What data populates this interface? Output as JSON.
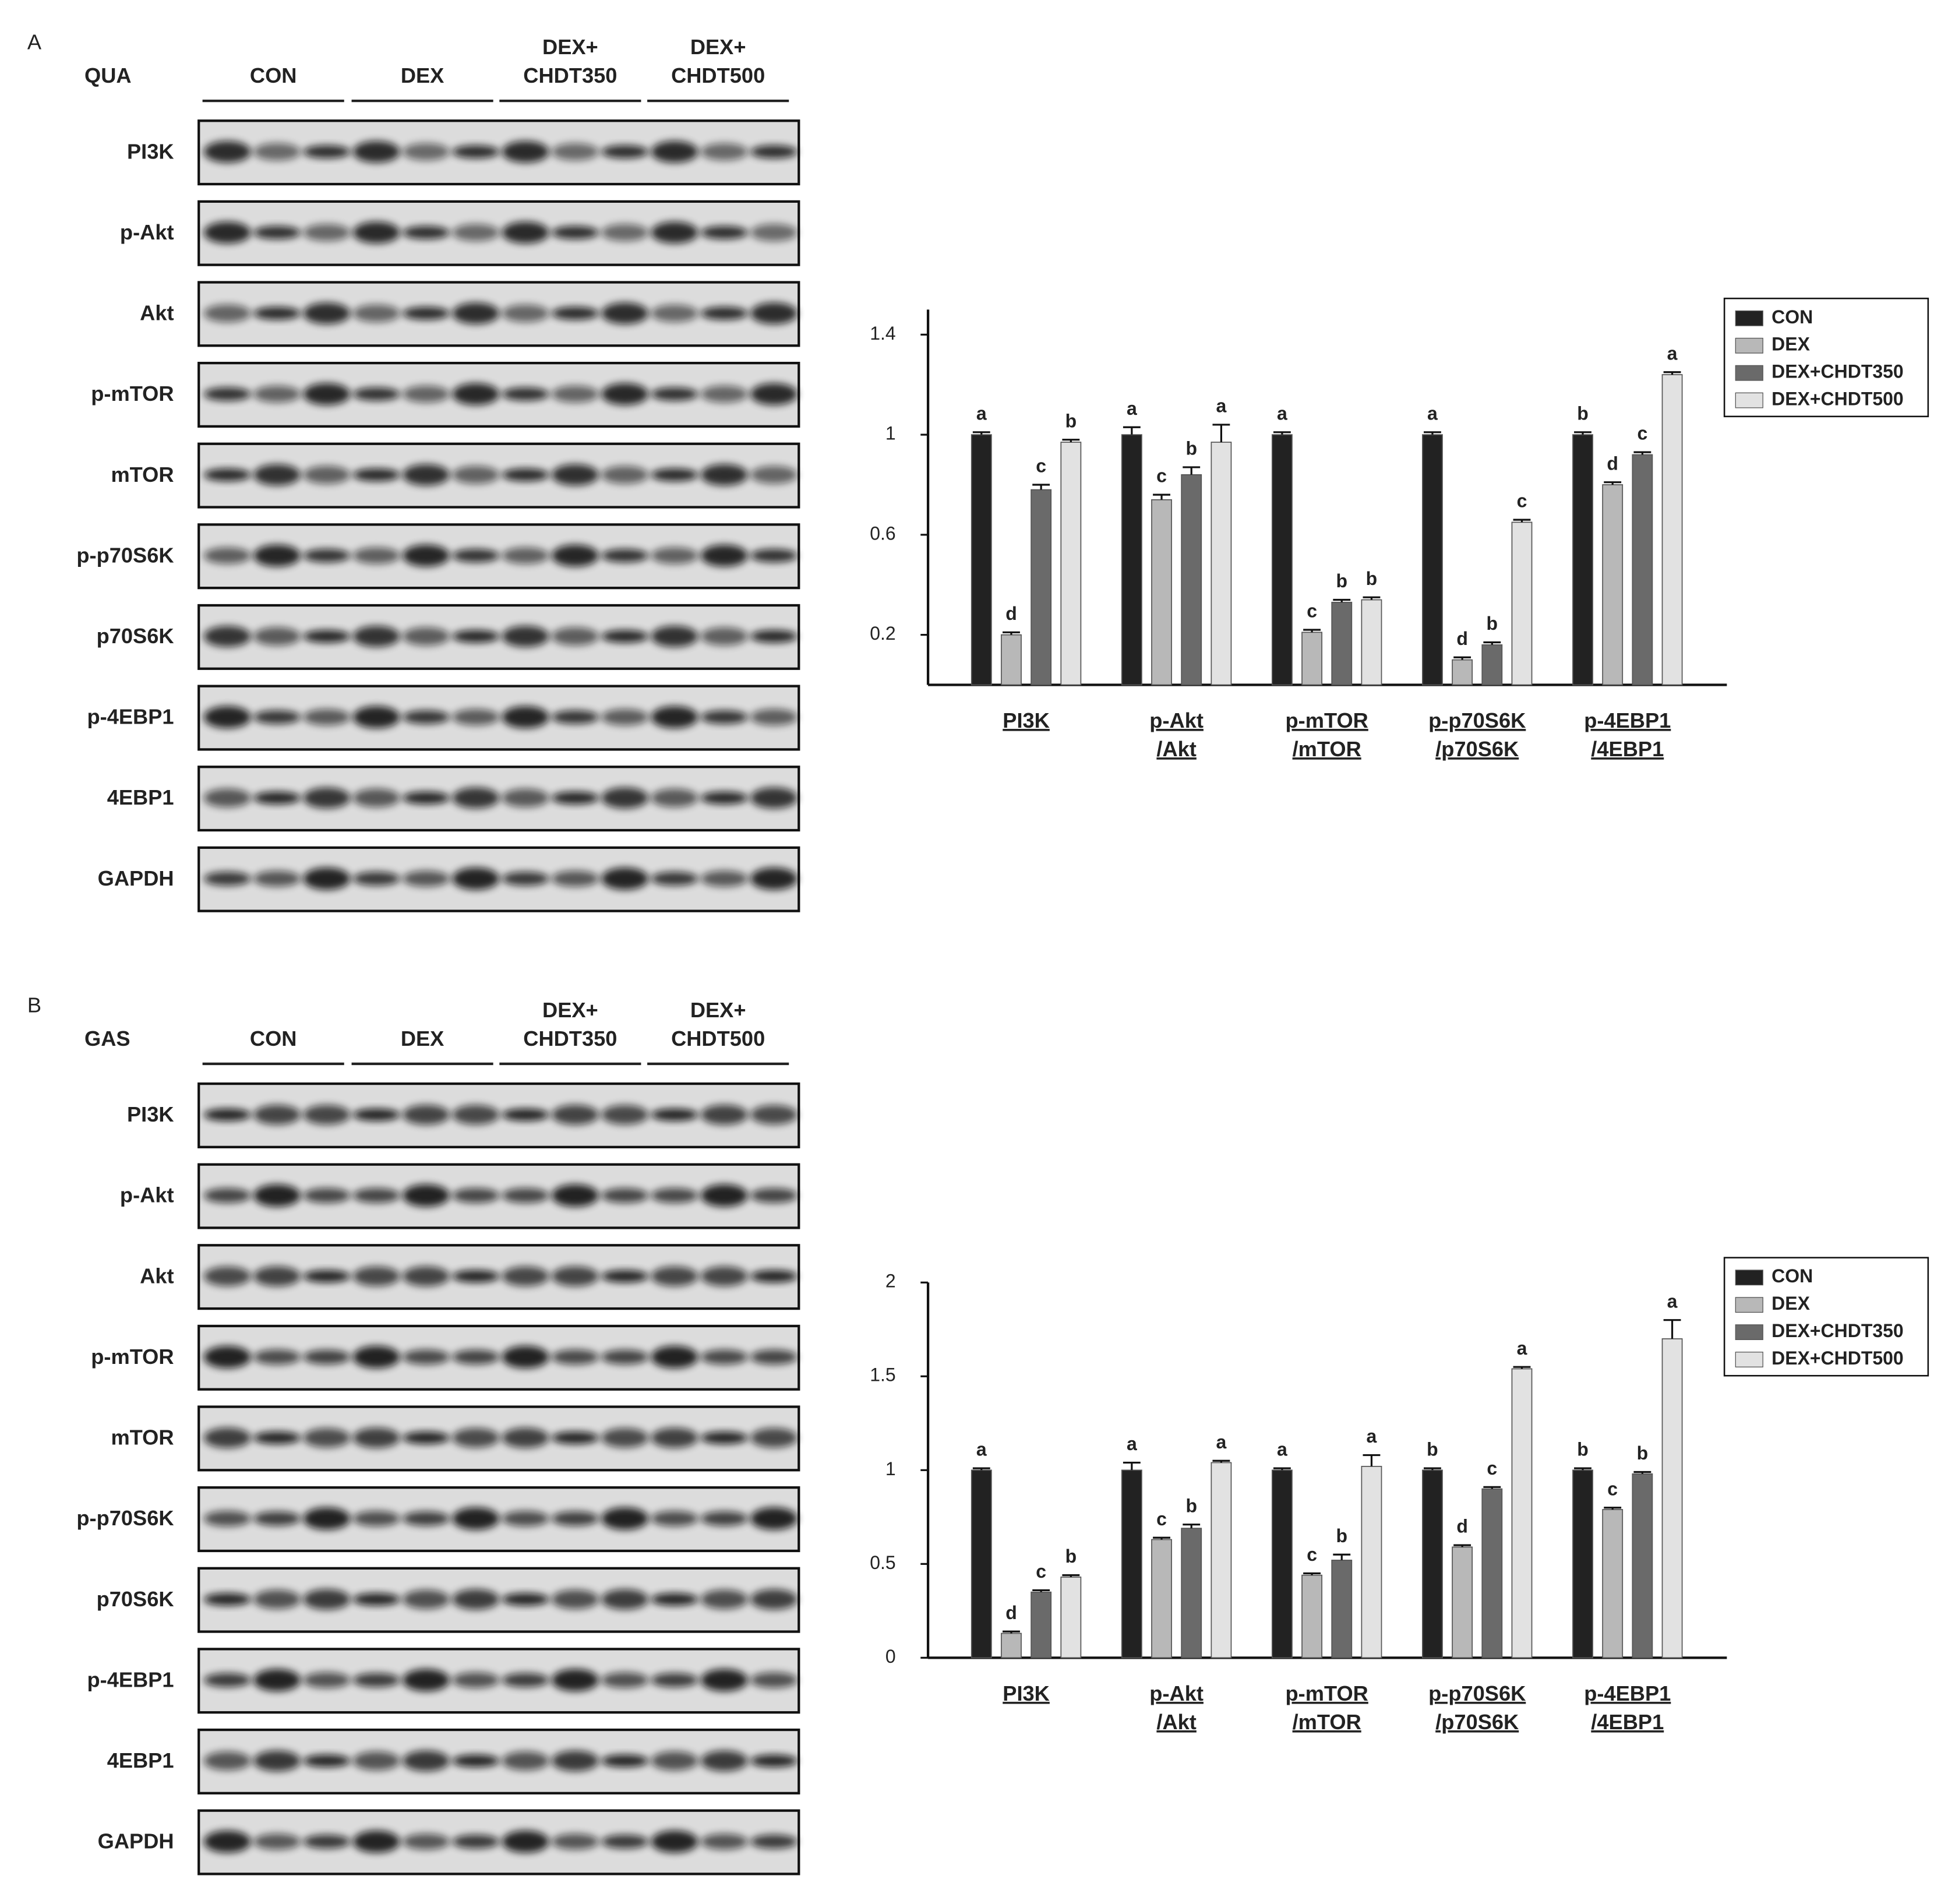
{
  "panels": [
    {
      "label": "A",
      "tissue": "QUA",
      "groups": [
        [
          "CON"
        ],
        [
          "DEX"
        ],
        [
          "DEX+",
          "CHDT350"
        ],
        [
          "DEX+",
          "CHDT500"
        ]
      ],
      "proteins": [
        "PI3K",
        "p-Akt",
        "Akt",
        "p-mTOR",
        "mTOR",
        "p-p70S6K",
        "p70S6K",
        "p-4EBP1",
        "4EBP1",
        "GAPDH"
      ]
    },
    {
      "label": "B",
      "tissue": "GAS",
      "groups": [
        [
          "CON"
        ],
        [
          "DEX"
        ],
        [
          "DEX+",
          "CHDT350"
        ],
        [
          "DEX+",
          "CHDT500"
        ]
      ],
      "proteins": [
        "PI3K",
        "p-Akt",
        "Akt",
        "p-mTOR",
        "mTOR",
        "p-p70S6K",
        "p70S6K",
        "p-4EBP1",
        "4EBP1",
        "GAPDH"
      ]
    }
  ],
  "chart_data": [
    {
      "type": "bar",
      "categories": [
        [
          "PI3K"
        ],
        [
          "p-Akt",
          "/Akt"
        ],
        [
          "p-mTOR",
          "/mTOR"
        ],
        [
          "p-p70S6K",
          "/p70S6K"
        ],
        [
          "p-4EBP1",
          "/4EBP1"
        ]
      ],
      "series": [
        {
          "name": "CON",
          "color": "#222222",
          "values": [
            1.0,
            1.0,
            1.0,
            1.0,
            1.0
          ],
          "errors": [
            0.01,
            0.03,
            0.01,
            0.01,
            0.01
          ],
          "letters": [
            "a",
            "a",
            "a",
            "a",
            "b"
          ]
        },
        {
          "name": "DEX",
          "color": "#b8b8b8",
          "values": [
            0.2,
            0.74,
            0.21,
            0.1,
            0.8
          ],
          "errors": [
            0.01,
            0.02,
            0.01,
            0.01,
            0.01
          ],
          "letters": [
            "d",
            "c",
            "c",
            "d",
            "d"
          ]
        },
        {
          "name": "DEX+CHDT350",
          "color": "#6a6a6a",
          "values": [
            0.78,
            0.84,
            0.33,
            0.16,
            0.92
          ],
          "errors": [
            0.02,
            0.03,
            0.01,
            0.01,
            0.01
          ],
          "letters": [
            "c",
            "b",
            "b",
            "b",
            "c"
          ]
        },
        {
          "name": "DEX+CHDT500",
          "color": "#e2e2e2",
          "values": [
            0.97,
            0.97,
            0.34,
            0.65,
            1.24
          ],
          "errors": [
            0.01,
            0.07,
            0.01,
            0.01,
            0.01
          ],
          "letters": [
            "b",
            "a",
            "b",
            "c",
            "a"
          ]
        }
      ],
      "ylim": [
        0,
        1.5
      ],
      "yticks": [
        0.2,
        0.6,
        1,
        1.4
      ],
      "legend": "upper right"
    },
    {
      "type": "bar",
      "categories": [
        [
          "PI3K"
        ],
        [
          "p-Akt",
          "/Akt"
        ],
        [
          "p-mTOR",
          "/mTOR"
        ],
        [
          "p-p70S6K",
          "/p70S6K"
        ],
        [
          "p-4EBP1",
          "/4EBP1"
        ]
      ],
      "series": [
        {
          "name": "CON",
          "color": "#222222",
          "values": [
            1.0,
            1.0,
            1.0,
            1.0,
            1.0
          ],
          "errors": [
            0.01,
            0.04,
            0.01,
            0.01,
            0.01
          ],
          "letters": [
            "a",
            "a",
            "a",
            "b",
            "b"
          ]
        },
        {
          "name": "DEX",
          "color": "#b8b8b8",
          "values": [
            0.13,
            0.63,
            0.44,
            0.59,
            0.79
          ],
          "errors": [
            0.01,
            0.01,
            0.01,
            0.01,
            0.01
          ],
          "letters": [
            "d",
            "c",
            "c",
            "d",
            "c"
          ]
        },
        {
          "name": "DEX+CHDT350",
          "color": "#6a6a6a",
          "values": [
            0.35,
            0.69,
            0.52,
            0.9,
            0.98
          ],
          "errors": [
            0.01,
            0.02,
            0.03,
            0.01,
            0.01
          ],
          "letters": [
            "c",
            "b",
            "b",
            "c",
            "b"
          ]
        },
        {
          "name": "DEX+CHDT500",
          "color": "#e2e2e2",
          "values": [
            0.43,
            1.04,
            1.02,
            1.54,
            1.7
          ],
          "errors": [
            0.01,
            0.01,
            0.06,
            0.01,
            0.1
          ],
          "letters": [
            "b",
            "a",
            "a",
            "a",
            "a"
          ]
        }
      ],
      "ylim": [
        0,
        2
      ],
      "yticks": [
        0,
        0.5,
        1,
        1.5,
        2
      ],
      "legend": "upper right"
    }
  ]
}
